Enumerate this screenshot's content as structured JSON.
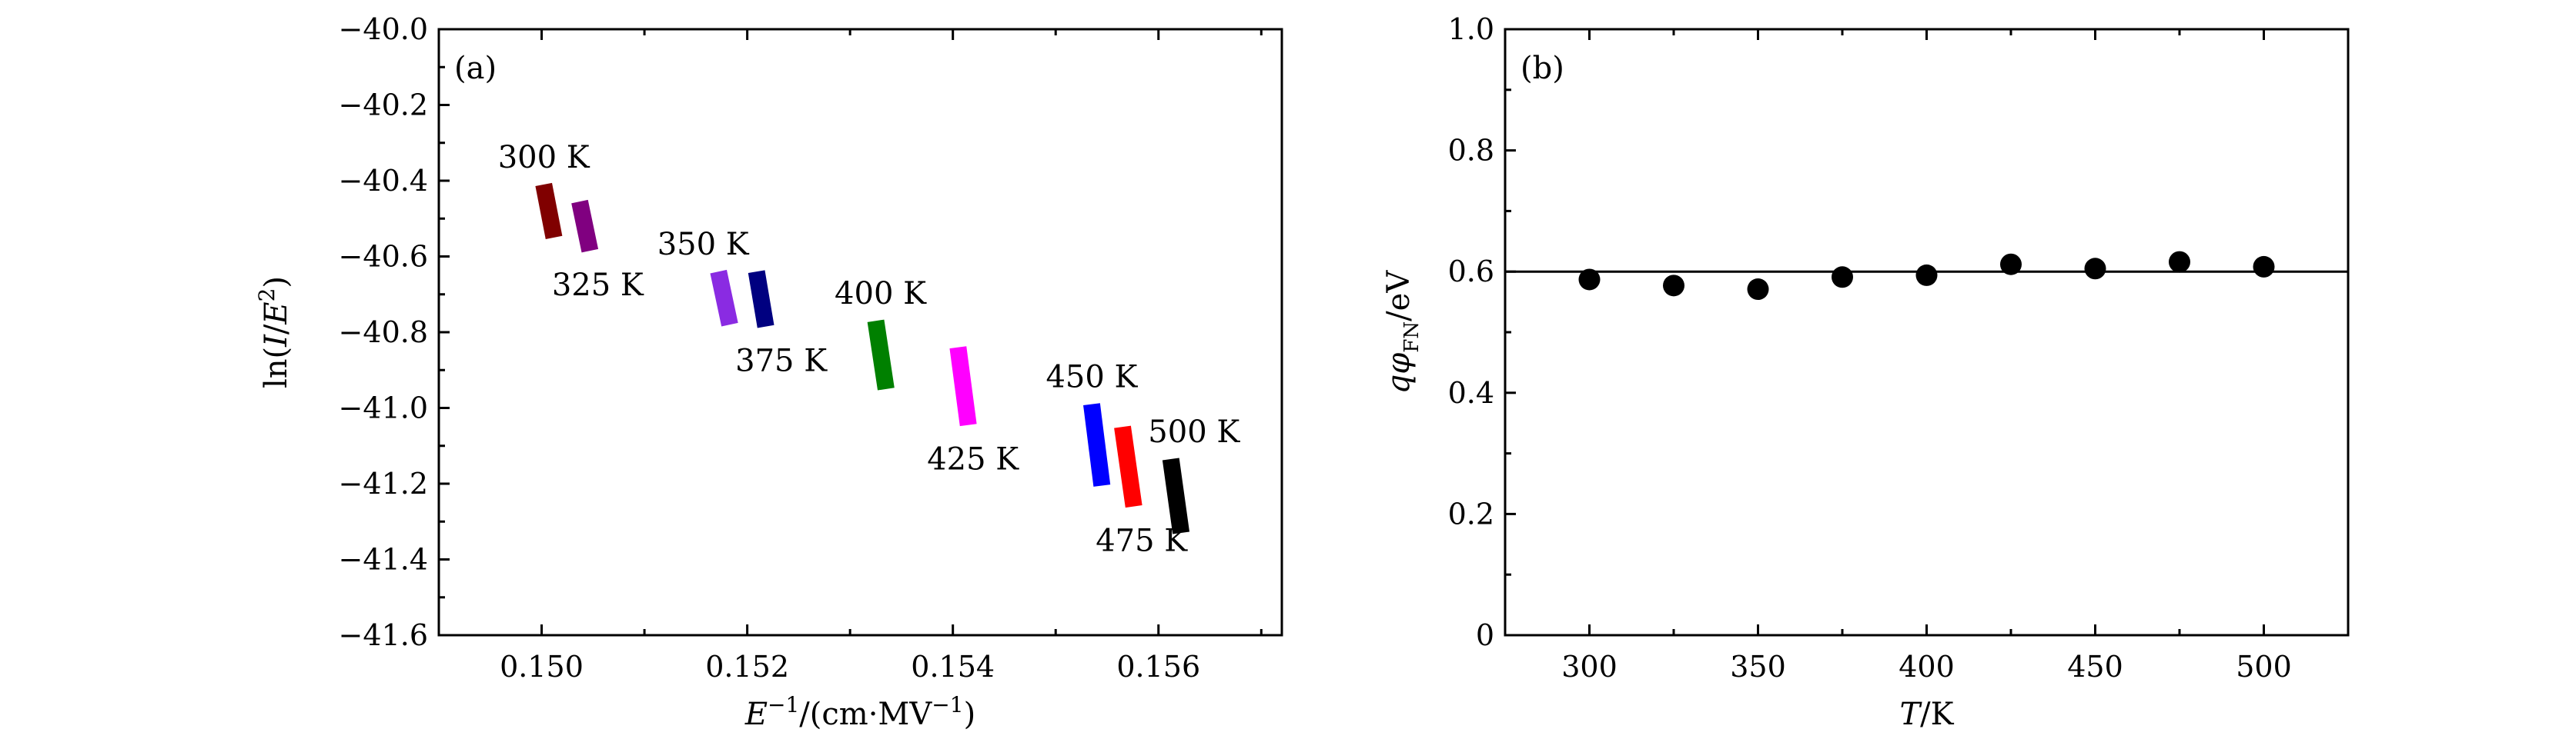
{
  "chart_data": [
    {
      "panel_label": "(a)",
      "type": "line",
      "xlabel": {
        "var": "E",
        "sup1": "−1",
        "rest": "/(cm·MV",
        "sup2": "−1",
        "close": ")"
      },
      "ylabel": {
        "pre": "ln(",
        "var1": "I",
        "slash": "/",
        "var2": "E",
        "sup": "2",
        "close": ")"
      },
      "xlim": [
        0.149,
        0.1572
      ],
      "ylim": [
        -41.6,
        -40.0
      ],
      "xticks": [
        0.15,
        0.152,
        0.154,
        0.156
      ],
      "xtick_labels": [
        "0.150",
        "0.152",
        "0.154",
        "0.156"
      ],
      "yticks": [
        -41.6,
        -41.4,
        -41.2,
        -41.0,
        -40.8,
        -40.6,
        -40.4,
        -40.2,
        -40.0
      ],
      "ytick_labels": [
        "−41.6",
        "−41.4",
        "−41.2",
        "−41.0",
        "−40.8",
        "−40.6",
        "−40.4",
        "−40.2",
        "−40.0"
      ],
      "series": [
        {
          "name": "300 K",
          "label": "300 K",
          "color": "#800000",
          "x": [
            0.15002,
            0.15012
          ],
          "y": [
            -40.41,
            -40.55
          ]
        },
        {
          "name": "325 K",
          "label": "325 K",
          "color": "#800080",
          "x": [
            0.15037,
            0.15047
          ],
          "y": [
            -40.455,
            -40.585
          ]
        },
        {
          "name": "350 K",
          "label": "350 K",
          "color": "#8a2be2",
          "x": [
            0.15172,
            0.15183
          ],
          "y": [
            -40.64,
            -40.78
          ]
        },
        {
          "name": "375 K",
          "label": "375 K",
          "color": "#000080",
          "x": [
            0.15209,
            0.15218
          ],
          "y": [
            -40.64,
            -40.785
          ]
        },
        {
          "name": "400 K",
          "label": "400 K",
          "color": "#008000",
          "x": [
            0.15325,
            0.15335
          ],
          "y": [
            -40.77,
            -40.95
          ]
        },
        {
          "name": "425 K",
          "label": "425 K",
          "color": "#ff00ff",
          "x": [
            0.15405,
            0.15415
          ],
          "y": [
            -40.84,
            -41.045
          ]
        },
        {
          "name": "450 K",
          "label": "450 K",
          "color": "#0000ff",
          "x": [
            0.15535,
            0.15545
          ],
          "y": [
            -40.99,
            -41.205
          ]
        },
        {
          "name": "475 K",
          "label": "475 K",
          "color": "#ff0000",
          "x": [
            0.15565,
            0.15576
          ],
          "y": [
            -41.05,
            -41.26
          ]
        },
        {
          "name": "500 K",
          "label": "500 K",
          "color": "#000000",
          "x": [
            0.15612,
            0.15622
          ],
          "y": [
            -41.135,
            -41.33
          ]
        }
      ]
    },
    {
      "panel_label": "(b)",
      "type": "scatter",
      "xlabel": {
        "var": "T",
        "rest": "/K"
      },
      "ylabel": {
        "var1": "q",
        "var2": "φ",
        "sub": "FN",
        "rest": "/eV"
      },
      "xlim": [
        275,
        525
      ],
      "ylim": [
        0,
        1.0
      ],
      "xticks": [
        300,
        350,
        400,
        450,
        500
      ],
      "xtick_labels": [
        "300",
        "350",
        "400",
        "450",
        "500"
      ],
      "yticks": [
        0,
        0.2,
        0.4,
        0.6,
        0.8,
        1.0
      ],
      "ytick_labels": [
        "0",
        "0.2",
        "0.4",
        "0.6",
        "0.8",
        "1.0"
      ],
      "series": [
        {
          "name": "qφFN",
          "color": "#000000",
          "x": [
            300,
            325,
            350,
            375,
            400,
            425,
            450,
            475,
            500
          ],
          "y": [
            0.587,
            0.577,
            0.571,
            0.591,
            0.594,
            0.612,
            0.605,
            0.616,
            0.608
          ]
        }
      ],
      "reference_line": {
        "y": 0.6,
        "color": "#000000"
      }
    }
  ]
}
